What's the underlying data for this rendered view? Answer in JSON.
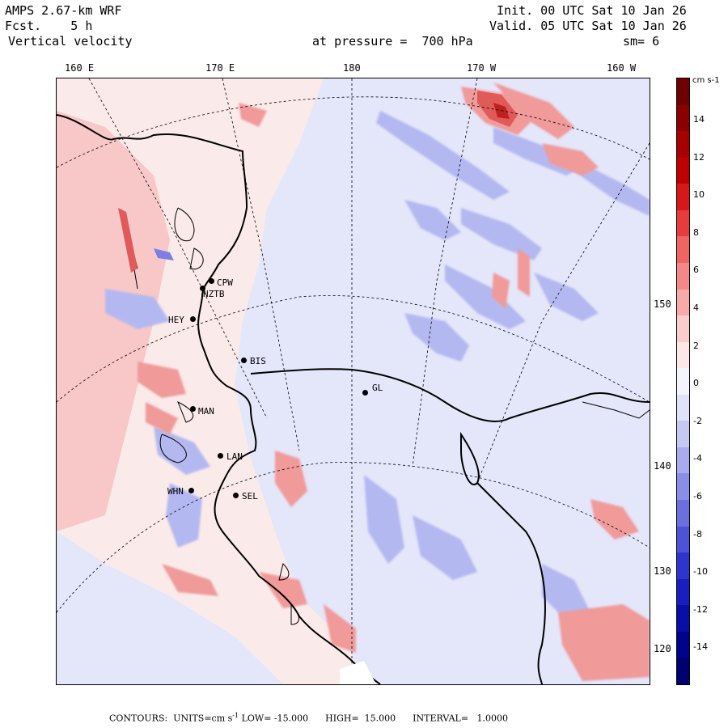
{
  "header": {
    "model": "AMPS 2.67-km WRF",
    "fcst_label": "Fcst.",
    "fcst_value": "5 h",
    "field": "Vertical velocity",
    "pressure_label": "at pressure =",
    "pressure_value": "700 hPa",
    "init": "Init. 00 UTC Sat 10 Jan 26",
    "valid": "Valid. 05 UTC Sat 10 Jan 26",
    "smooth": "sm= 6"
  },
  "lon_labels": [
    "160 E",
    "170 E",
    "180",
    "170 W",
    "160 W"
  ],
  "lat_labels": [
    "150 W",
    "140 W",
    "130 W",
    "120 W"
  ],
  "stations": [
    "CPW",
    "NZTB",
    "HEY",
    "BIS",
    "GL",
    "MAN",
    "LAN",
    "WHN",
    "SEL"
  ],
  "legend": {
    "unit": "cm s-1",
    "levels": [
      "14",
      "12",
      "10",
      "8",
      "6",
      "4",
      "2",
      "0",
      "-2",
      "-4",
      "-6",
      "-8",
      "-10",
      "-12",
      "-14"
    ],
    "colors": [
      "#6e0000",
      "#8c0000",
      "#a80000",
      "#c00000",
      "#d81818",
      "#e83c3c",
      "#f06464",
      "#f48888",
      "#f8aaaa",
      "#fbcccc",
      "#fde6e6",
      "#f4f4fc",
      "#e0e2fa",
      "#c6c8f4",
      "#a8acee",
      "#8a8ee6",
      "#6c70de",
      "#4e52d6",
      "#3034ce",
      "#1a1ec0",
      "#0a0ea8",
      "#00048c",
      "#000070"
    ],
    "color_positive": "#f4a0a0",
    "color_negative": "#a8acee"
  },
  "footer": {
    "contours": "CONTOURS:",
    "units": "UNITS=cm s",
    "units_exp": "-1",
    "low": "LOW= -15.000",
    "high": "HIGH=  15.000",
    "interval": "INTERVAL=   1.0000"
  },
  "map_colors": {
    "background": "#fbeaea",
    "positive_light": "#f8c8c8",
    "positive_mid": "#f09a9a",
    "positive_strong": "#e05a5a",
    "negative_light": "#e4e6fa",
    "negative_mid": "#b4b8f0",
    "negative_strong": "#7c80e0",
    "ice": "#ffffff"
  }
}
